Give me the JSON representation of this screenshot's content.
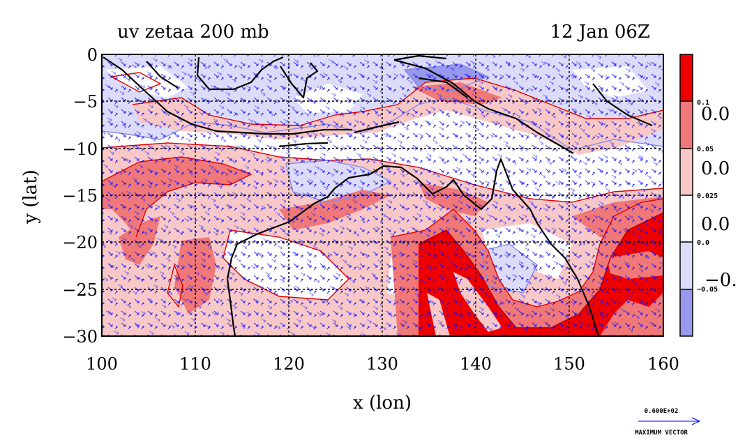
{
  "title": "uv zetaa 200 mb",
  "timestamp": "12 Jan 06Z",
  "axes": {
    "xlabel": "x (lon)",
    "ylabel": "y (lat)",
    "x_ticks": [
      "100",
      "110",
      "120",
      "130",
      "140",
      "150",
      "160"
    ],
    "y_ticks": [
      "0",
      "−5",
      "−10",
      "−15",
      "−20",
      "−25",
      "−30"
    ],
    "xlim": [
      100,
      160
    ],
    "ylim": [
      -30,
      0
    ]
  },
  "colorbar": {
    "bands": [
      {
        "color": "#ef0000"
      },
      {
        "color": "#f07878"
      },
      {
        "color": "#f8c8c8"
      },
      {
        "color": "#ffffff"
      },
      {
        "color": "#dcdcfa"
      },
      {
        "color": "#9898ec"
      }
    ],
    "small_labels": [
      "0.1",
      "0.05",
      "0.025",
      "0.0",
      "−0.05"
    ],
    "large_labels": [
      "0.0",
      "0.0",
      "0.0",
      "−0."
    ]
  },
  "vector_key": {
    "value": "0.600E+02",
    "caption": "MAXIMUM VECTOR"
  },
  "colors": {
    "strong_pos": "#ef0000",
    "mid_pos": "#f07878",
    "light_pos": "#f8c8c8",
    "light_neg": "#dcdcfa",
    "neg": "#9898ec",
    "contour_pos": "#e00000",
    "contour_neg": "#8a8ae6",
    "vectors": "#0000ff",
    "coast": "#000000"
  }
}
